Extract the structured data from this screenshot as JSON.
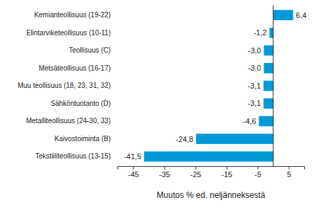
{
  "chart_data": {
    "type": "bar",
    "orientation": "horizontal",
    "x_label": "Muutos % ed. neljänneksestä",
    "categories": [
      "Kemianteollisuus (19-22)",
      "Elintarviketeollisuus (10-11)",
      "Teollisuus (C)",
      "Metsäteollisuus (16-17)",
      "Muu teollisuus (18, 23, 31, 32)",
      "Sähköntuotanto (D)",
      "Metalliteollisuus (24-30, 33)",
      "Kaivostoiminta (B)",
      "Tekstiiliteollisuus (13-15)"
    ],
    "values": [
      6.4,
      -1.2,
      -3.0,
      -3.0,
      -3.1,
      -3.1,
      -4.6,
      -24.8,
      -41.5
    ],
    "value_labels": [
      "6,4",
      "-1,2",
      "-3,0",
      "-3,0",
      "-3,1",
      "-3,1",
      "-4,6",
      "-24,8",
      "-41,5"
    ],
    "data_labels": true,
    "color": "#009ad8",
    "grid": false,
    "xlim": [
      -50,
      10
    ],
    "xticks": [
      -45,
      -35,
      -25,
      -15,
      -5,
      5
    ]
  }
}
